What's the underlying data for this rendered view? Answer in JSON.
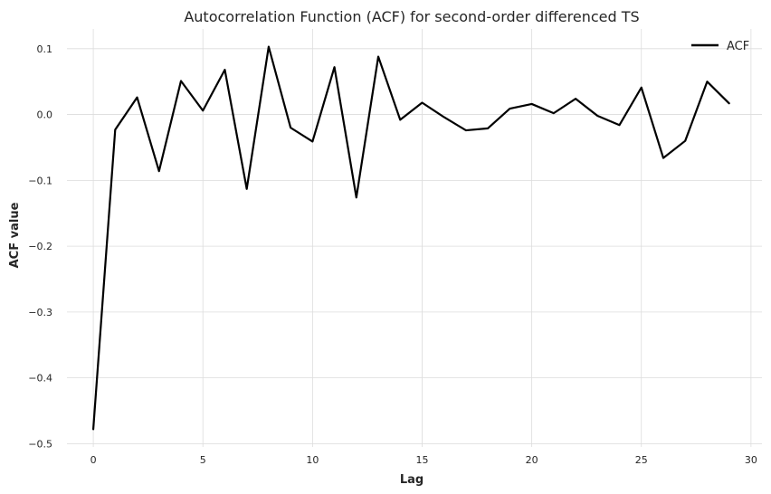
{
  "chart_data": {
    "type": "line",
    "title": "Autocorrelation Function (ACF) for second-order differenced TS",
    "xlabel": "Lag",
    "ylabel": "ACF value",
    "xlim": [
      -1.2,
      30.5
    ],
    "ylim": [
      -0.505,
      0.13
    ],
    "x_ticks": [
      0,
      5,
      10,
      15,
      20,
      25,
      30
    ],
    "x_tick_labels": [
      "0",
      "5",
      "10",
      "15",
      "20",
      "25",
      "30"
    ],
    "y_ticks": [
      0.1,
      0.0,
      -0.1,
      -0.2,
      -0.3,
      -0.4,
      -0.5
    ],
    "y_tick_labels": [
      "0.1",
      "0.0",
      "−0.1",
      "−0.2",
      "−0.3",
      "−0.4",
      "−0.5"
    ],
    "grid": true,
    "legend_position": "top-right",
    "series": [
      {
        "name": "ACF",
        "color": "#000000",
        "x": [
          0,
          1,
          2,
          3,
          4,
          5,
          6,
          7,
          8,
          9,
          10,
          11,
          12,
          13,
          14,
          15,
          16,
          17,
          18,
          19,
          20,
          21,
          22,
          23,
          24,
          25,
          26,
          27,
          28,
          29
        ],
        "values": [
          -0.478,
          -0.023,
          0.026,
          -0.086,
          0.051,
          0.006,
          0.068,
          -0.113,
          0.103,
          -0.02,
          -0.041,
          0.072,
          -0.126,
          0.088,
          -0.008,
          0.018,
          -0.004,
          -0.024,
          -0.021,
          0.009,
          0.016,
          0.002,
          0.024,
          -0.002,
          -0.016,
          0.041,
          -0.066,
          -0.04,
          0.05,
          0.017
        ]
      }
    ]
  }
}
